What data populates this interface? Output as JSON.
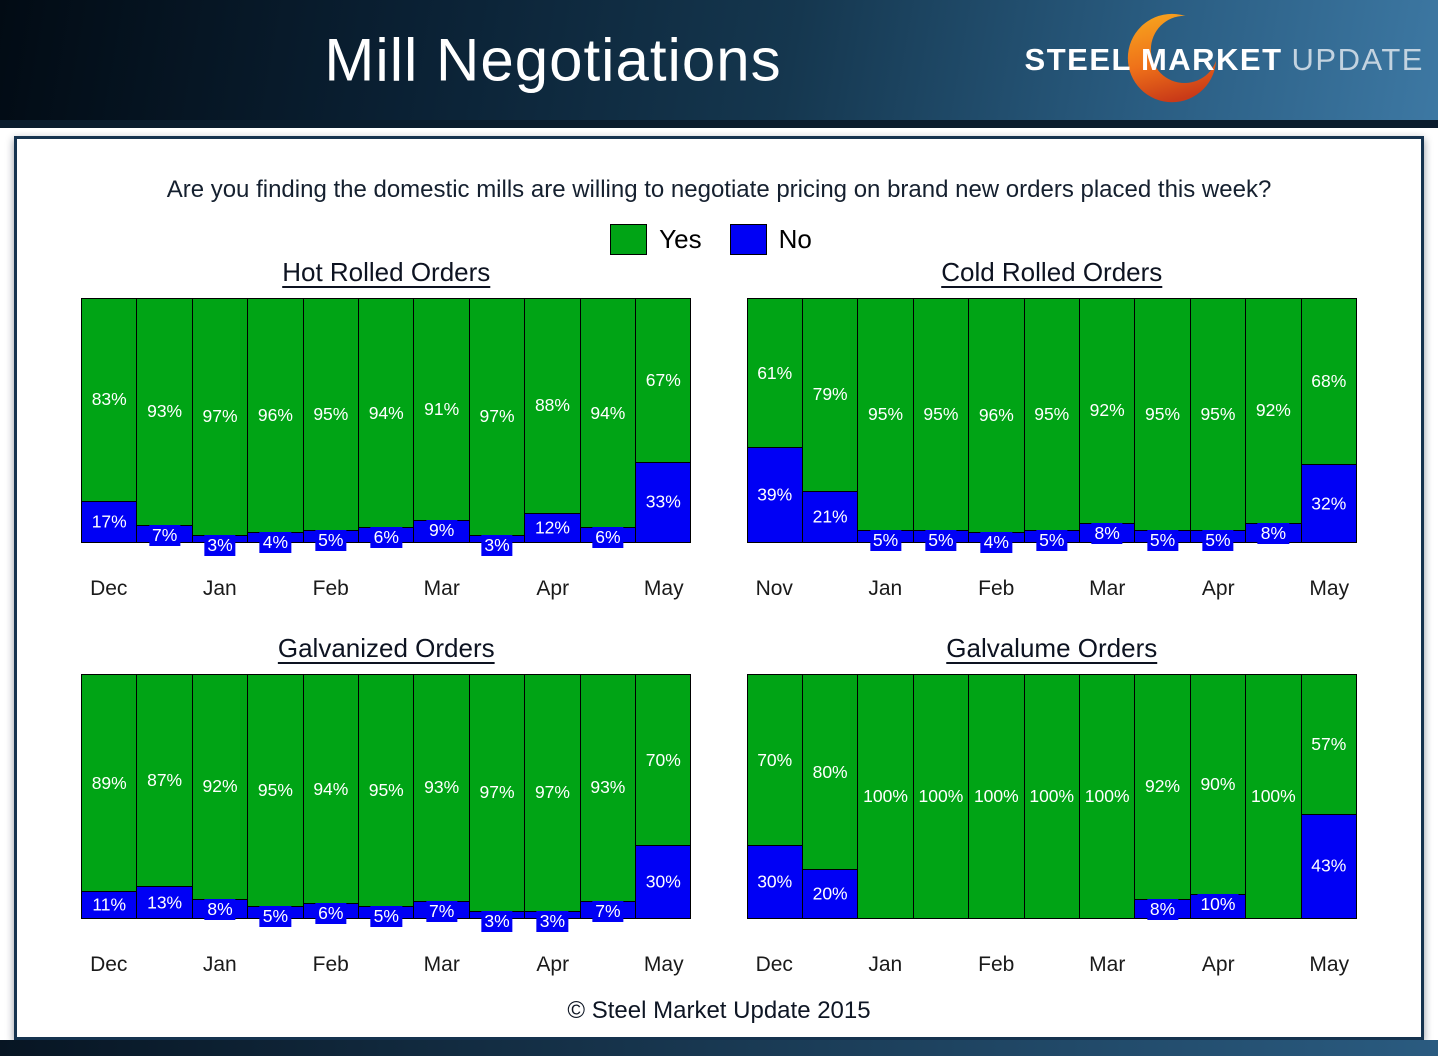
{
  "header": {
    "title": "Mill Negotiations",
    "logo": {
      "steel": "STEEL",
      "market": "MARKET",
      "update": "UPDATE"
    }
  },
  "question": "Are you finding the domestic mills are willing to negotiate pricing on brand new orders placed this week?",
  "legend": {
    "yes_label": "Yes",
    "no_label": "No"
  },
  "colors": {
    "yes": "#00a415",
    "no": "#0000f5"
  },
  "footer": "© Steel Market Update 2015",
  "chart_data": [
    {
      "type": "bar",
      "stacked": true,
      "title": "Hot Rolled Orders",
      "value_unit": "%",
      "ylim": [
        0,
        100
      ],
      "legend_position": "top-center",
      "month_labels": [
        "Dec",
        "Jan",
        "Feb",
        "Mar",
        "Apr",
        "May"
      ],
      "series": [
        {
          "name": "Yes",
          "color": "#00a415",
          "values": [
            83,
            93,
            97,
            96,
            95,
            94,
            91,
            97,
            88,
            94,
            67
          ]
        },
        {
          "name": "No",
          "color": "#0000f5",
          "values": [
            17,
            7,
            3,
            4,
            5,
            6,
            9,
            3,
            12,
            6,
            33
          ]
        }
      ]
    },
    {
      "type": "bar",
      "stacked": true,
      "title": "Cold Rolled Orders",
      "value_unit": "%",
      "ylim": [
        0,
        100
      ],
      "legend_position": "top-center",
      "month_labels": [
        "Nov",
        "Jan",
        "Feb",
        "Mar",
        "Apr",
        "May"
      ],
      "series": [
        {
          "name": "Yes",
          "color": "#00a415",
          "values": [
            61,
            79,
            95,
            95,
            96,
            95,
            92,
            95,
            95,
            92,
            68
          ]
        },
        {
          "name": "No",
          "color": "#0000f5",
          "values": [
            39,
            21,
            5,
            5,
            4,
            5,
            8,
            5,
            5,
            8,
            32
          ]
        }
      ]
    },
    {
      "type": "bar",
      "stacked": true,
      "title": "Galvanized Orders",
      "value_unit": "%",
      "ylim": [
        0,
        100
      ],
      "legend_position": "top-center",
      "month_labels": [
        "Dec",
        "Jan",
        "Feb",
        "Mar",
        "Apr",
        "May"
      ],
      "series": [
        {
          "name": "Yes",
          "color": "#00a415",
          "values": [
            89,
            87,
            92,
            95,
            94,
            95,
            93,
            97,
            97,
            93,
            70
          ]
        },
        {
          "name": "No",
          "color": "#0000f5",
          "values": [
            11,
            13,
            8,
            5,
            6,
            5,
            7,
            3,
            3,
            7,
            30
          ]
        }
      ]
    },
    {
      "type": "bar",
      "stacked": true,
      "title": "Galvalume Orders",
      "value_unit": "%",
      "ylim": [
        0,
        100
      ],
      "legend_position": "top-center",
      "month_labels": [
        "Dec",
        "Jan",
        "Feb",
        "Mar",
        "Apr",
        "May"
      ],
      "series": [
        {
          "name": "Yes",
          "color": "#00a415",
          "values": [
            70,
            80,
            100,
            100,
            100,
            100,
            100,
            92,
            90,
            100,
            57
          ]
        },
        {
          "name": "No",
          "color": "#0000f5",
          "values": [
            30,
            20,
            0,
            0,
            0,
            0,
            0,
            8,
            10,
            0,
            43
          ]
        }
      ]
    }
  ]
}
